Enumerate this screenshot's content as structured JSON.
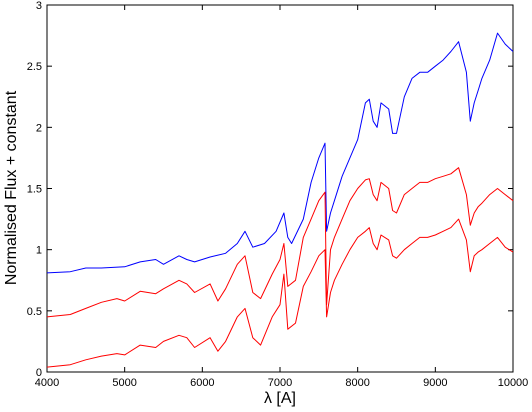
{
  "chart_data": {
    "type": "line",
    "title": "",
    "xlabel": "λ [A]",
    "ylabel": "Normalised Flux + constant",
    "xlim": [
      4000,
      10000
    ],
    "ylim": [
      0,
      3
    ],
    "xticks": [
      4000,
      5000,
      6000,
      7000,
      8000,
      9000,
      10000
    ],
    "yticks": [
      0,
      0.5,
      1,
      1.5,
      2,
      2.5,
      3
    ],
    "xtick_labels": [
      "4000",
      "5000",
      "6000",
      "7000",
      "8000",
      "9000",
      "10000"
    ],
    "ytick_labels": [
      "0",
      "0.5",
      "1",
      "1.5",
      "2",
      "2.5",
      "3"
    ],
    "grid": false,
    "legend": "none",
    "series": [
      {
        "color": "#0000ff",
        "x": [
          4000,
          4300,
          4500,
          4700,
          5000,
          5200,
          5400,
          5500,
          5700,
          5800,
          5900,
          6100,
          6300,
          6450,
          6550,
          6650,
          6800,
          6950,
          7050,
          7100,
          7150,
          7300,
          7400,
          7500,
          7580,
          7600,
          7650,
          7700,
          7800,
          7900,
          8000,
          8100,
          8150,
          8200,
          8250,
          8300,
          8400,
          8450,
          8500,
          8600,
          8700,
          8800,
          8900,
          9000,
          9100,
          9200,
          9300,
          9400,
          9450,
          9500,
          9550,
          9600,
          9700,
          9800,
          9900,
          10000
        ],
        "y": [
          0.81,
          0.82,
          0.85,
          0.85,
          0.86,
          0.9,
          0.92,
          0.88,
          0.95,
          0.92,
          0.9,
          0.94,
          0.97,
          1.05,
          1.15,
          1.02,
          1.05,
          1.15,
          1.3,
          1.1,
          1.05,
          1.25,
          1.55,
          1.75,
          1.87,
          1.15,
          1.3,
          1.4,
          1.6,
          1.75,
          1.9,
          2.2,
          2.23,
          2.05,
          2.0,
          2.2,
          2.15,
          1.95,
          1.95,
          2.25,
          2.4,
          2.45,
          2.45,
          2.5,
          2.55,
          2.62,
          2.7,
          2.45,
          2.05,
          2.2,
          2.3,
          2.4,
          2.55,
          2.77,
          2.68,
          2.62
        ]
      },
      {
        "color": "#ff0000",
        "x": [
          4000,
          4300,
          4500,
          4700,
          4900,
          5000,
          5200,
          5400,
          5500,
          5700,
          5800,
          5900,
          6100,
          6200,
          6300,
          6450,
          6550,
          6650,
          6750,
          6900,
          7000,
          7050,
          7100,
          7200,
          7300,
          7400,
          7500,
          7580,
          7600,
          7650,
          7700,
          7800,
          7900,
          8000,
          8100,
          8150,
          8200,
          8250,
          8300,
          8400,
          8450,
          8500,
          8600,
          8700,
          8800,
          8900,
          9000,
          9100,
          9200,
          9300,
          9400,
          9450,
          9500,
          9550,
          9600,
          9700,
          9800,
          9900,
          10000
        ],
        "y": [
          0.45,
          0.47,
          0.52,
          0.57,
          0.6,
          0.58,
          0.66,
          0.64,
          0.68,
          0.75,
          0.72,
          0.65,
          0.72,
          0.58,
          0.68,
          0.88,
          0.95,
          0.65,
          0.6,
          0.8,
          0.92,
          1.05,
          0.7,
          0.75,
          1.1,
          1.25,
          1.4,
          1.47,
          0.55,
          1.0,
          1.1,
          1.25,
          1.4,
          1.5,
          1.57,
          1.58,
          1.45,
          1.4,
          1.55,
          1.5,
          1.32,
          1.3,
          1.45,
          1.5,
          1.55,
          1.55,
          1.58,
          1.6,
          1.62,
          1.67,
          1.45,
          1.2,
          1.3,
          1.35,
          1.38,
          1.45,
          1.5,
          1.45,
          1.4
        ]
      },
      {
        "color": "#ff0000",
        "x": [
          4000,
          4300,
          4500,
          4700,
          4900,
          5000,
          5200,
          5400,
          5500,
          5700,
          5800,
          5900,
          6100,
          6200,
          6300,
          6450,
          6550,
          6650,
          6750,
          6900,
          7000,
          7050,
          7100,
          7200,
          7300,
          7400,
          7500,
          7580,
          7600,
          7650,
          7700,
          7800,
          7900,
          8000,
          8100,
          8150,
          8200,
          8250,
          8300,
          8400,
          8450,
          8500,
          8600,
          8700,
          8800,
          8900,
          9000,
          9100,
          9200,
          9300,
          9400,
          9450,
          9500,
          9550,
          9600,
          9700,
          9800,
          9900,
          10000
        ],
        "y": [
          0.04,
          0.06,
          0.1,
          0.13,
          0.15,
          0.14,
          0.22,
          0.2,
          0.25,
          0.3,
          0.28,
          0.2,
          0.28,
          0.17,
          0.25,
          0.45,
          0.52,
          0.28,
          0.22,
          0.45,
          0.55,
          0.8,
          0.35,
          0.4,
          0.7,
          0.82,
          0.95,
          1.0,
          0.45,
          0.65,
          0.75,
          0.88,
          1.0,
          1.1,
          1.15,
          1.18,
          1.05,
          1.0,
          1.12,
          1.08,
          0.95,
          0.93,
          1.0,
          1.05,
          1.1,
          1.1,
          1.12,
          1.15,
          1.18,
          1.25,
          1.08,
          0.82,
          0.95,
          0.98,
          1.0,
          1.05,
          1.1,
          1.02,
          0.98
        ]
      }
    ]
  }
}
